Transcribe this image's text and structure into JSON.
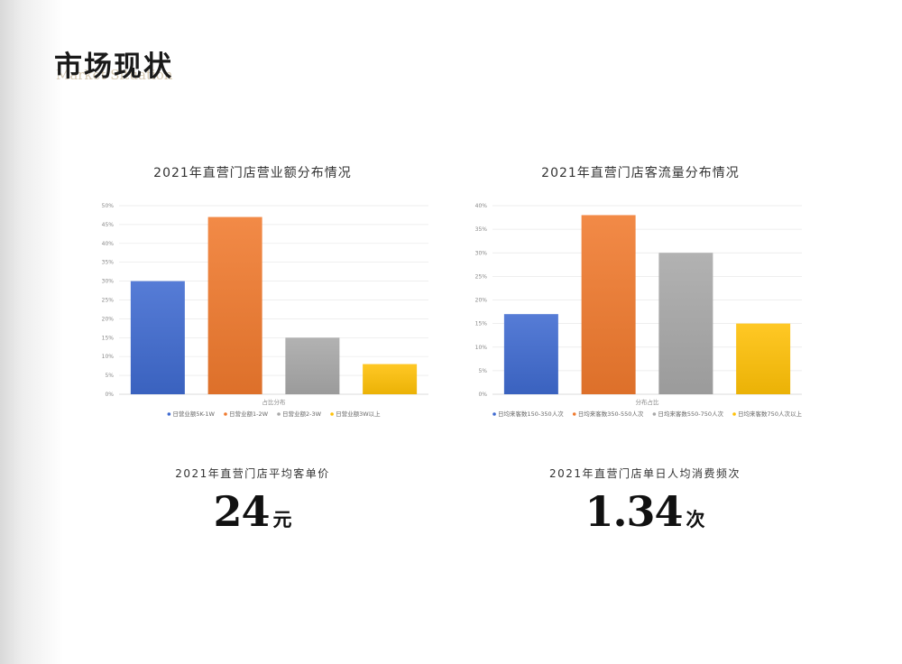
{
  "header": {
    "title_cn": "市场现状",
    "title_en": "Market Situation"
  },
  "colors": {
    "blue": "#3f6ad0",
    "orange": "#f07a2e",
    "gray": "#a8a8a8",
    "yellow": "#ffc107"
  },
  "chart_data": [
    {
      "type": "bar",
      "title": "2021年直营门店营业额分布情况",
      "xlabel": "占比分布",
      "ylim": [
        0,
        50
      ],
      "yticks": [
        "0%",
        "5%",
        "10%",
        "15%",
        "20%",
        "25%",
        "30%",
        "35%",
        "40%",
        "45%",
        "50%"
      ],
      "grid": true,
      "legend_position": "bottom",
      "series": [
        {
          "name": "日营业额5K-1W",
          "value": 30,
          "color": "blue"
        },
        {
          "name": "日营业额1-2W",
          "value": 47,
          "color": "orange"
        },
        {
          "name": "日营业额2-3W",
          "value": 15,
          "color": "gray"
        },
        {
          "name": "日营业额3W以上",
          "value": 8,
          "color": "yellow"
        }
      ]
    },
    {
      "type": "bar",
      "title": "2021年直营门店客流量分布情况",
      "xlabel": "分布占比",
      "ylim": [
        0,
        40
      ],
      "yticks": [
        "0%",
        "5%",
        "10%",
        "15%",
        "20%",
        "25%",
        "30%",
        "35%",
        "40%"
      ],
      "grid": true,
      "legend_position": "bottom",
      "series": [
        {
          "name": "日均来客数150-350人次",
          "value": 17,
          "color": "blue"
        },
        {
          "name": "日均来客数350-550人次",
          "value": 38,
          "color": "orange"
        },
        {
          "name": "日均来客数550-750人次",
          "value": 30,
          "color": "gray"
        },
        {
          "name": "日均来客数750人次以上",
          "value": 15,
          "color": "yellow"
        }
      ]
    }
  ],
  "stats": [
    {
      "label": "2021年直营门店平均客单价",
      "value": "24",
      "unit": "元"
    },
    {
      "label": "2021年直营门店单日人均消费频次",
      "value": "1.34",
      "unit": "次"
    }
  ]
}
